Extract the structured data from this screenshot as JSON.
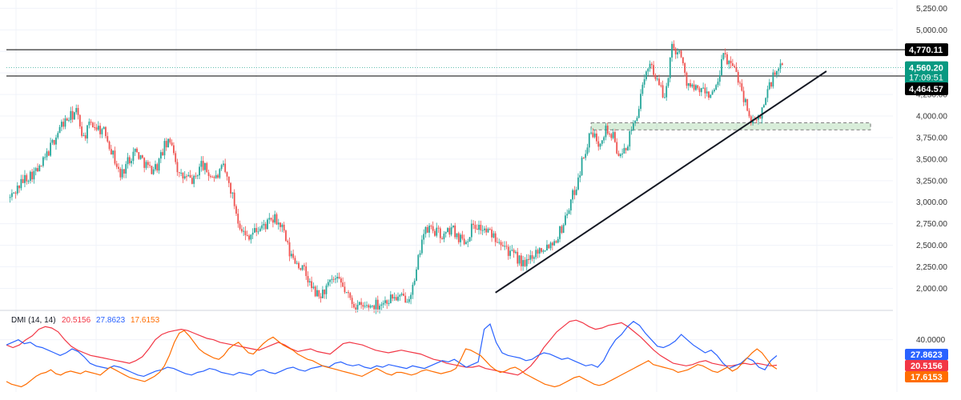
{
  "chart_data": [
    {
      "type": "candlestick",
      "title": "",
      "ylim": [
        1800,
        5300
      ],
      "y_ticks": [
        "2,000.00",
        "2,250.00",
        "2,500.00",
        "2,750.00",
        "3,000.00",
        "3,250.00",
        "3,500.00",
        "3,750.00",
        "4,000.00",
        "4,250.00",
        "4,500.00",
        "4,750.00",
        "5,000.00",
        "5,250.00"
      ],
      "y_tick_values": [
        2000,
        2250,
        2500,
        2750,
        3000,
        3250,
        3500,
        3750,
        4000,
        4250,
        4500,
        4750,
        5000,
        5250
      ],
      "grid": true,
      "colors": {
        "up": "#26a69a",
        "down": "#ef5350"
      },
      "close_path": [
        [
          0,
          3050
        ],
        [
          2,
          3280
        ],
        [
          4,
          3380
        ],
        [
          5,
          3550
        ],
        [
          7,
          3900
        ],
        [
          9,
          4050
        ],
        [
          10,
          3750
        ],
        [
          11,
          3920
        ],
        [
          13,
          3800
        ],
        [
          15,
          3300
        ],
        [
          16,
          3480
        ],
        [
          17,
          3600
        ],
        [
          19,
          3380
        ],
        [
          20,
          3420
        ],
        [
          21,
          3650
        ],
        [
          22,
          3700
        ],
        [
          23,
          3300
        ],
        [
          24,
          3280
        ],
        [
          25,
          3250
        ],
        [
          26,
          3450
        ],
        [
          27,
          3330
        ],
        [
          28,
          3280
        ],
        [
          29,
          3400
        ],
        [
          30,
          3150
        ],
        [
          31,
          2800
        ],
        [
          32,
          2600
        ],
        [
          33,
          2650
        ],
        [
          34,
          2700
        ],
        [
          35,
          2750
        ],
        [
          36,
          2800
        ],
        [
          37,
          2700
        ],
        [
          38,
          2400
        ],
        [
          39,
          2300
        ],
        [
          40,
          2200
        ],
        [
          41,
          2000
        ],
        [
          42,
          1900
        ],
        [
          43,
          2000
        ],
        [
          44,
          2100
        ],
        [
          45,
          2050
        ],
        [
          46,
          1900
        ],
        [
          47,
          1800
        ],
        [
          48,
          1780
        ],
        [
          49,
          1800
        ],
        [
          50,
          1820
        ],
        [
          51,
          1850
        ],
        [
          52,
          1900
        ],
        [
          53,
          1880
        ],
        [
          54,
          1900
        ],
        [
          55,
          2050
        ],
        [
          56,
          2600
        ],
        [
          57,
          2700
        ],
        [
          58,
          2650
        ],
        [
          59,
          2600
        ],
        [
          60,
          2700
        ],
        [
          61,
          2600
        ],
        [
          62,
          2550
        ],
        [
          63,
          2750
        ],
        [
          64,
          2700
        ],
        [
          65,
          2650
        ],
        [
          66,
          2600
        ],
        [
          67,
          2550
        ],
        [
          68,
          2400
        ],
        [
          69,
          2350
        ],
        [
          70,
          2250
        ],
        [
          71,
          2400
        ],
        [
          72,
          2450
        ],
        [
          73,
          2500
        ],
        [
          74,
          2550
        ],
        [
          75,
          2700
        ],
        [
          76,
          2950
        ],
        [
          77,
          3200
        ],
        [
          78,
          3550
        ],
        [
          79,
          3800
        ],
        [
          80,
          3700
        ],
        [
          81,
          3850
        ],
        [
          82,
          3750
        ],
        [
          83,
          3500
        ],
        [
          84,
          3700
        ],
        [
          85,
          3950
        ],
        [
          86,
          4300
        ],
        [
          87,
          4650
        ],
        [
          88,
          4400
        ],
        [
          89,
          4200
        ],
        [
          90,
          4800
        ],
        [
          91,
          4750
        ],
        [
          92,
          4400
        ],
        [
          93,
          4300
        ],
        [
          94,
          4300
        ],
        [
          95,
          4250
        ],
        [
          96,
          4300
        ],
        [
          97,
          4700
        ],
        [
          98,
          4600
        ],
        [
          99,
          4450
        ],
        [
          100,
          4150
        ],
        [
          101,
          3900
        ],
        [
          102,
          4000
        ],
        [
          103,
          4300
        ],
        [
          104,
          4500
        ],
        [
          105,
          4560.2
        ]
      ],
      "levels": [
        {
          "value": 4770.11,
          "label": "4,770.11",
          "color": "#000000"
        },
        {
          "value": 4464.57,
          "label": "4,464.57",
          "color": "#000000"
        }
      ],
      "last_price": {
        "value": 4560.2,
        "label": "4,560.20",
        "countdown": "17:09:51",
        "color": "#089981"
      },
      "trendline": {
        "from": [
          66,
          1950
        ],
        "to": [
          111,
          4520
        ]
      },
      "zone": {
        "x_from": 79,
        "x_to": 117,
        "y_from": 3840,
        "y_to": 3920
      }
    },
    {
      "type": "line",
      "title": "DMI (14, 14)",
      "ylim": [
        0,
        60
      ],
      "y_ticks": [
        "40.0000"
      ],
      "y_tick_values": [
        40
      ],
      "series": [
        {
          "name": "",
          "color": "#f23645",
          "last_label": "20.5156",
          "values": [
            36,
            34,
            36,
            40,
            43,
            48,
            50,
            49,
            46,
            40,
            35,
            32,
            30,
            28,
            27,
            26,
            25,
            24,
            23,
            22,
            24,
            27,
            33,
            40,
            44,
            46,
            47,
            48,
            47,
            45,
            43,
            41,
            40,
            38,
            37,
            36,
            35,
            34,
            33,
            32,
            34,
            36,
            38,
            36,
            33,
            31,
            32,
            33,
            31,
            30,
            29,
            33,
            37,
            38,
            37,
            36,
            34,
            32,
            31,
            30,
            31,
            32,
            31,
            30,
            29,
            27,
            25,
            24,
            22,
            21,
            20,
            19,
            19,
            20,
            18,
            17,
            16,
            15,
            14,
            13,
            16,
            20,
            26,
            34,
            40,
            46,
            50,
            54,
            55,
            53,
            50,
            48,
            49,
            51,
            52,
            53,
            50,
            46,
            42,
            37,
            32,
            28,
            25,
            22,
            21,
            20,
            21,
            23,
            24,
            22,
            21,
            20,
            20,
            21,
            22,
            21,
            22,
            21,
            20,
            20.5156
          ]
        },
        {
          "name": "",
          "color": "#2962ff",
          "last_label": "27.8623",
          "values": [
            36,
            38,
            40,
            37,
            38,
            35,
            34,
            32,
            30,
            28,
            30,
            33,
            31,
            27,
            22,
            20,
            19,
            18,
            20,
            19,
            17,
            15,
            13,
            12,
            14,
            16,
            17,
            19,
            18,
            16,
            14,
            13,
            15,
            16,
            18,
            17,
            15,
            14,
            13,
            15,
            14,
            13,
            16,
            17,
            15,
            14,
            16,
            18,
            19,
            17,
            16,
            18,
            19,
            20,
            19,
            22,
            23,
            21,
            20,
            21,
            19,
            18,
            20,
            19,
            21,
            20,
            19,
            18,
            20,
            19,
            18,
            20,
            22,
            24,
            23,
            25,
            22,
            19,
            21,
            23,
            48,
            52,
            38,
            30,
            28,
            27,
            26,
            24,
            25,
            28,
            30,
            29,
            27,
            25,
            26,
            24,
            22,
            20,
            21,
            19,
            24,
            33,
            40,
            44,
            50,
            54,
            51,
            45,
            40,
            35,
            34,
            36,
            39,
            44,
            40,
            36,
            33,
            30,
            32,
            28,
            22,
            18,
            20,
            22,
            26,
            24,
            19,
            17,
            24,
            27.8623
          ]
        },
        {
          "name": "",
          "color": "#ff6d00",
          "last_label": "17.6153",
          "values": [
            8,
            6,
            5,
            4,
            6,
            9,
            12,
            14,
            15,
            17,
            14,
            13,
            15,
            16,
            15,
            14,
            16,
            15,
            14,
            13,
            16,
            19,
            17,
            15,
            13,
            11,
            10,
            9,
            8,
            10,
            12,
            15,
            20,
            28,
            38,
            45,
            47,
            43,
            38,
            33,
            30,
            28,
            26,
            25,
            28,
            33,
            36,
            38,
            34,
            30,
            29,
            33,
            37,
            40,
            42,
            39,
            36,
            34,
            32,
            29,
            27,
            25,
            24,
            22,
            20,
            19,
            18,
            17,
            16,
            15,
            14,
            13,
            12,
            14,
            16,
            18,
            16,
            14,
            13,
            15,
            15,
            14,
            13,
            14,
            16,
            17,
            16,
            15,
            14,
            15,
            16,
            18,
            25,
            33,
            32,
            30,
            28,
            24,
            20,
            17,
            15,
            16,
            18,
            19,
            17,
            14,
            12,
            10,
            8,
            6,
            5,
            4,
            5,
            7,
            9,
            11,
            12,
            10,
            8,
            6,
            5,
            6,
            8,
            10,
            12,
            14,
            16,
            18,
            20,
            22,
            24,
            21,
            20,
            19,
            18,
            17,
            15,
            16,
            17,
            19,
            21,
            20,
            18,
            16,
            15,
            17,
            19,
            16,
            18,
            22,
            26,
            30,
            33,
            30,
            25,
            20,
            17.6153
          ]
        }
      ]
    }
  ]
}
